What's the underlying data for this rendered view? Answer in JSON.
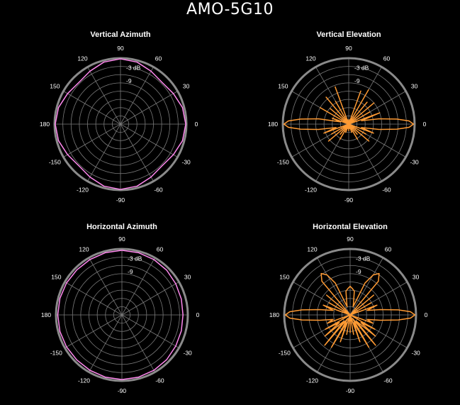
{
  "title": "AMO-5G10",
  "colors": {
    "azimuth": "#ff88ee",
    "elevation": "#ff9a33",
    "background": "#000000",
    "grid": "#7a7a7a"
  },
  "chart_data": [
    {
      "type": "polar",
      "title": "Vertical Azimuth",
      "angle_labels": [
        "90",
        "60",
        "30",
        "0",
        "-30",
        "-60",
        "-90",
        "-120",
        "-150",
        "180",
        "150",
        "120"
      ],
      "angle_values": [
        90,
        60,
        30,
        0,
        -30,
        -60,
        -90,
        -120,
        -150,
        180,
        150,
        120
      ],
      "db_labels": [
        "-3 dB",
        "-9"
      ],
      "db_values": [
        -3,
        -9
      ],
      "series": [
        {
          "color": "#ff88ee",
          "angles_deg": [
            0,
            15,
            30,
            45,
            60,
            75,
            90,
            105,
            120,
            135,
            150,
            165,
            180,
            195,
            210,
            225,
            240,
            255,
            270,
            285,
            300,
            315,
            330,
            345
          ],
          "gain_db": [
            -0.3,
            -0.8,
            -2.2,
            -3.2,
            -2.2,
            -0.8,
            -0.3,
            -0.8,
            -2.2,
            -3.2,
            -2.2,
            -0.8,
            -0.3,
            -0.8,
            -2.2,
            -3.2,
            -2.2,
            -0.8,
            -0.3,
            -0.8,
            -2.2,
            -3.2,
            -2.2,
            -0.8
          ]
        }
      ]
    },
    {
      "type": "polar",
      "title": "Vertical Elevation",
      "angle_labels": [
        "90",
        "60",
        "30",
        "0",
        "-30",
        "-60",
        "-90",
        "-120",
        "-150",
        "180",
        "150",
        "120"
      ],
      "angle_values": [
        90,
        60,
        30,
        0,
        -30,
        -60,
        -90,
        -120,
        -150,
        180,
        150,
        120
      ],
      "db_labels": [
        "-3 dB",
        "-9"
      ],
      "db_values": [
        -3,
        -9
      ],
      "series": [
        {
          "color": "#ff9a33",
          "angles_deg": [
            0,
            3,
            6,
            10,
            15,
            20,
            25,
            30,
            35,
            40,
            45,
            50,
            55,
            60,
            65,
            70,
            75,
            80,
            85,
            90,
            95,
            100,
            105,
            110,
            115,
            120,
            125,
            130,
            135,
            140,
            145,
            150,
            155,
            160,
            165,
            170,
            174,
            177,
            180,
            183,
            186,
            190,
            195,
            200,
            205,
            210,
            215,
            220,
            225,
            230,
            235,
            240,
            245,
            250,
            255,
            260,
            265,
            270,
            275,
            280,
            285,
            290,
            295,
            300,
            305,
            310,
            315,
            320,
            325,
            330,
            335,
            340,
            345,
            350,
            354,
            357
          ],
          "gain_db": [
            -0.5,
            -2.5,
            -8,
            -16,
            -24,
            -15,
            -30,
            -19,
            -30,
            -15,
            -30,
            -17,
            -30,
            -12,
            -30,
            -14,
            -30,
            -28,
            -30,
            -30,
            -30,
            -28,
            -30,
            -12,
            -30,
            -18,
            -30,
            -14,
            -30,
            -19,
            -30,
            -15,
            -30,
            -22,
            -26,
            -16,
            -8,
            -2.5,
            -0.5,
            -2.5,
            -8,
            -16,
            -24,
            -18,
            -30,
            -21,
            -30,
            -18,
            -30,
            -24,
            -30,
            -22,
            -30,
            -26,
            -30,
            -28,
            -30,
            -27,
            -30,
            -28,
            -30,
            -26,
            -30,
            -22,
            -30,
            -24,
            -30,
            -18,
            -30,
            -21,
            -30,
            -18,
            -24,
            -16,
            -8,
            -2.5
          ]
        }
      ]
    },
    {
      "type": "polar",
      "title": "Horizontal Azimuth",
      "angle_labels": [
        "90",
        "60",
        "30",
        "0",
        "-30",
        "-60",
        "-90",
        "-120",
        "-150",
        "180",
        "150",
        "120"
      ],
      "angle_values": [
        90,
        60,
        30,
        0,
        -30,
        -60,
        -90,
        -120,
        -150,
        180,
        150,
        120
      ],
      "db_labels": [
        "-3 dB",
        "-9"
      ],
      "db_values": [
        -3,
        -9
      ],
      "series": [
        {
          "color": "#ff88ee",
          "angles_deg": [
            0,
            15,
            30,
            45,
            60,
            75,
            90,
            105,
            120,
            135,
            150,
            165,
            180,
            195,
            210,
            225,
            240,
            255,
            270,
            285,
            300,
            315,
            330,
            345
          ],
          "gain_db": [
            -2.2,
            -2.0,
            -1.7,
            -1.2,
            -0.9,
            -0.7,
            -0.6,
            -0.7,
            -0.9,
            -1.0,
            -0.9,
            -0.8,
            -0.8,
            -0.8,
            -0.9,
            -1.0,
            -0.9,
            -0.7,
            -0.6,
            -0.7,
            -0.9,
            -1.2,
            -1.7,
            -2.0
          ]
        }
      ]
    },
    {
      "type": "polar",
      "title": "Horizontal Elevation",
      "angle_labels": [
        "90",
        "60",
        "30",
        "0",
        "-30",
        "-60",
        "-90",
        "-120",
        "-150",
        "180",
        "150",
        "120"
      ],
      "angle_values": [
        90,
        60,
        30,
        0,
        -30,
        -60,
        -90,
        -120,
        -150,
        180,
        150,
        120
      ],
      "db_labels": [
        "-3 dB",
        "-9"
      ],
      "db_values": [
        -3,
        -9
      ],
      "series": [
        {
          "color": "#ff9a33",
          "angles_deg": [
            0,
            3,
            6,
            10,
            15,
            20,
            25,
            30,
            35,
            40,
            45,
            50,
            55,
            60,
            65,
            70,
            75,
            80,
            85,
            90,
            95,
            100,
            105,
            110,
            115,
            120,
            125,
            130,
            135,
            140,
            145,
            150,
            155,
            160,
            165,
            170,
            174,
            177,
            180,
            183,
            186,
            190,
            195,
            200,
            205,
            210,
            215,
            220,
            225,
            230,
            235,
            240,
            245,
            250,
            255,
            260,
            265,
            270,
            275,
            280,
            285,
            290,
            295,
            300,
            305,
            310,
            315,
            320,
            325,
            330,
            335,
            340,
            345,
            350,
            354,
            357
          ],
          "gain_db": [
            -0.5,
            -2.5,
            -8,
            -16,
            -22,
            -17,
            -30,
            -19,
            -30,
            -16,
            -30,
            -10,
            -7,
            -9,
            -14,
            -26,
            -24,
            -19,
            -18,
            -17,
            -18,
            -19,
            -24,
            -26,
            -14,
            -9,
            -7,
            -10,
            -30,
            -16,
            -30,
            -19,
            -30,
            -17,
            -22,
            -16,
            -8,
            -2.5,
            -0.5,
            -2.5,
            -8,
            -16,
            -22,
            -19,
            -30,
            -17,
            -24,
            -15,
            -26,
            -12,
            -28,
            -13,
            -26,
            -17,
            -30,
            -21,
            -30,
            -22,
            -30,
            -21,
            -30,
            -17,
            -26,
            -13,
            -28,
            -12,
            -26,
            -15,
            -24,
            -17,
            -30,
            -19,
            -22,
            -16,
            -8,
            -2.5
          ]
        }
      ]
    }
  ]
}
